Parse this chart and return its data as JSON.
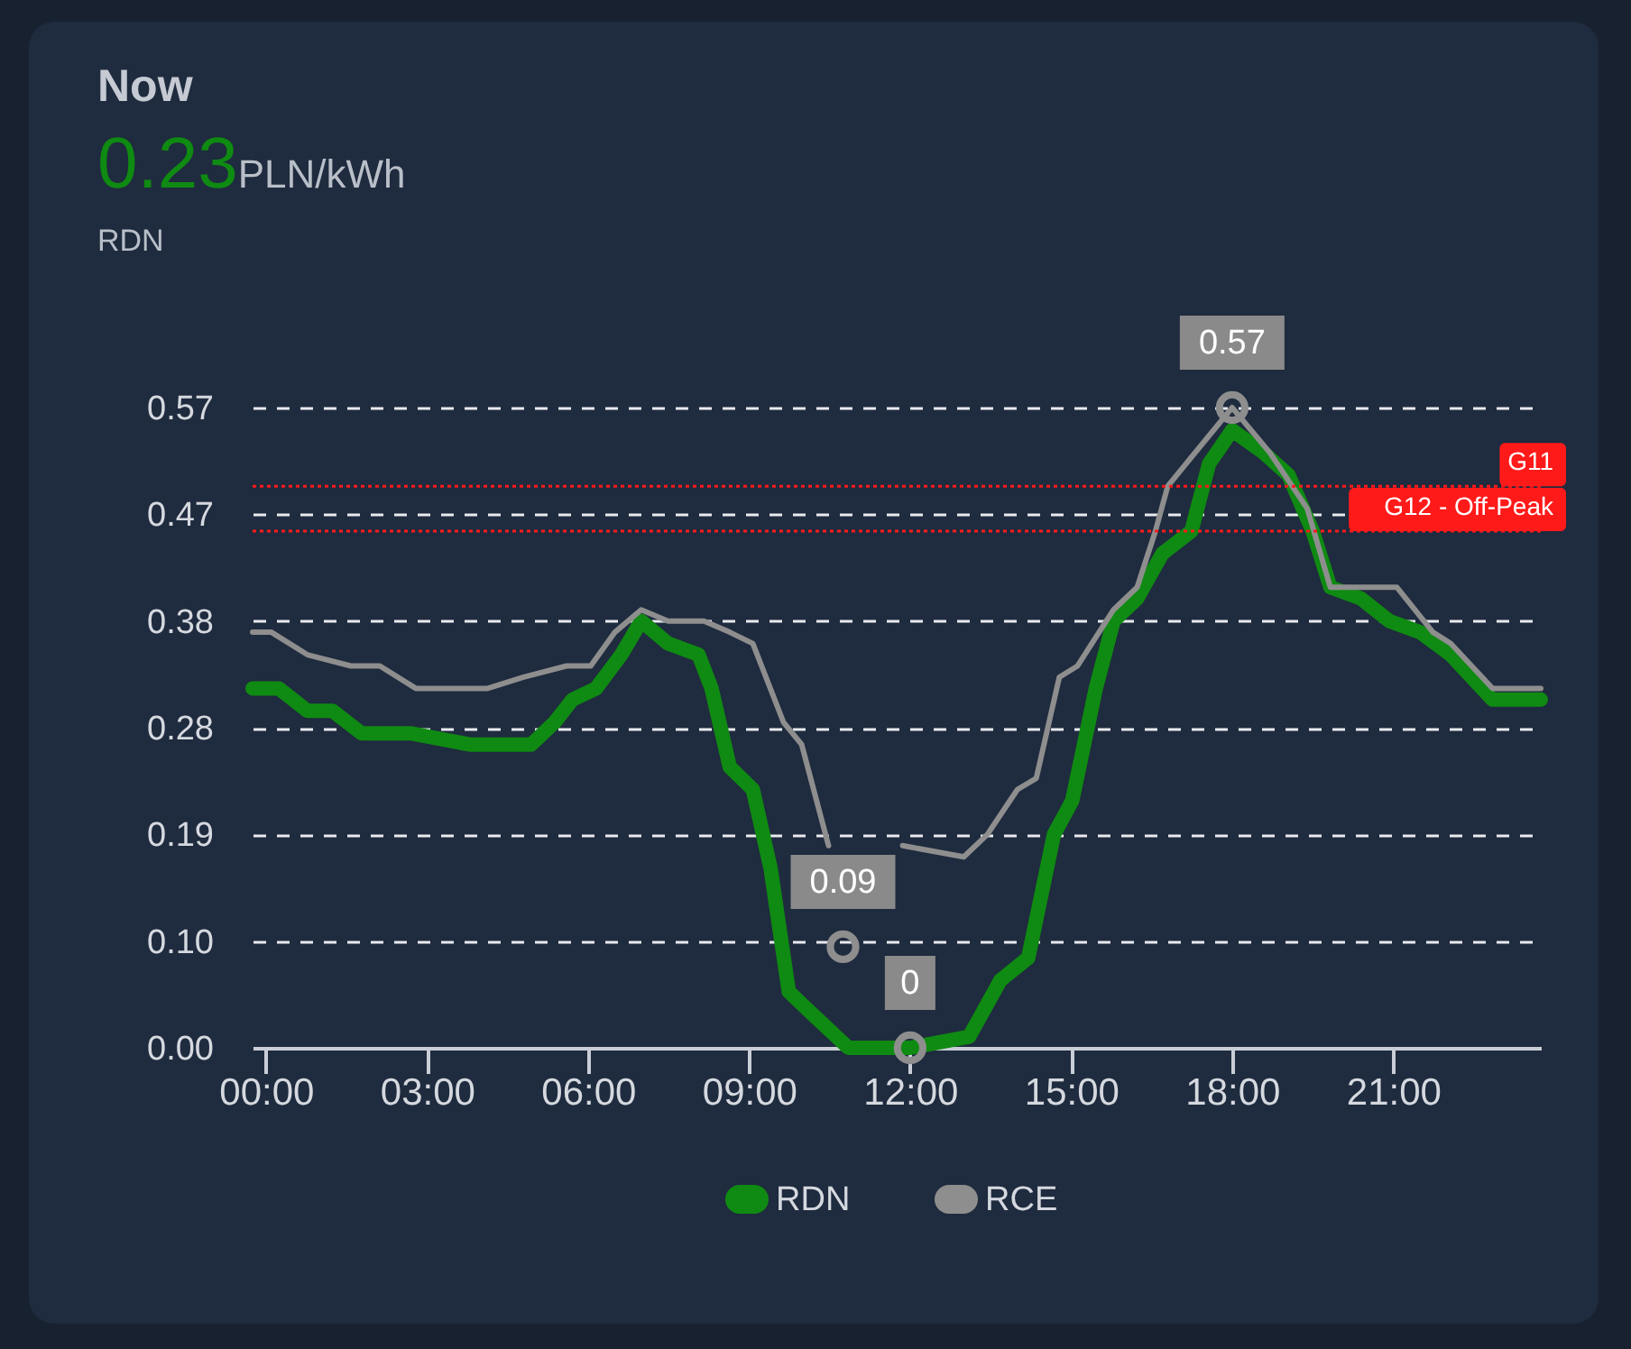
{
  "chart_data": {
    "type": "line",
    "title": "Now",
    "subtitle": "0.23PLN/kWh",
    "annotations": [
      "RDN",
      {
        "text": "0.57",
        "x": 18,
        "y": 0.57
      },
      {
        "text": "0.09",
        "x": 10.75,
        "y": 0.09
      },
      {
        "text": "0",
        "x": 12,
        "y": 0
      }
    ],
    "series": [
      {
        "name": "RDN",
        "color": "#0f8a12",
        "x": [
          -0.25,
          0.24,
          0.77,
          1.24,
          1.78,
          2.69,
          3.8,
          4.94,
          5.38,
          5.71,
          6.15,
          6.62,
          6.99,
          7.49,
          8.06,
          8.3,
          8.64,
          9.07,
          9.4,
          9.74,
          10.18,
          10.85,
          12,
          13.1,
          13.68,
          14.2,
          14.68,
          15.02,
          15.46,
          15.79,
          16.23,
          16.7,
          17.24,
          17.57,
          18,
          18.58,
          19.05,
          19.5,
          19.83,
          20.4,
          20.93,
          21.5,
          22.07,
          22.85,
          23.75
        ],
        "values": [
          0.32,
          0.32,
          0.3,
          0.3,
          0.28,
          0.28,
          0.27,
          0.27,
          0.29,
          0.31,
          0.32,
          0.35,
          0.38,
          0.36,
          0.35,
          0.32,
          0.25,
          0.23,
          0.16,
          0.05,
          0.03,
          0.0,
          0.0,
          0.01,
          0.06,
          0.08,
          0.19,
          0.22,
          0.32,
          0.38,
          0.4,
          0.44,
          0.46,
          0.52,
          0.55,
          0.53,
          0.51,
          0.46,
          0.41,
          0.4,
          0.38,
          0.37,
          0.35,
          0.31,
          0.31
        ]
      },
      {
        "name": "RCE",
        "color": "#8e8e8e",
        "x": [
          -0.25,
          0.1,
          0.77,
          1.58,
          2.12,
          2.79,
          4.13,
          4.8,
          5.6,
          6.05,
          6.5,
          6.99,
          7.49,
          8.16,
          8.64,
          9.07,
          9.64,
          9.98,
          10.48,
          10.75,
          11.86,
          13,
          13.44,
          14,
          14.35,
          14.78,
          15.12,
          15.79,
          16.23,
          16.57,
          16.8,
          17.14,
          18,
          18.7,
          19.4,
          19.83,
          21.07,
          21.74,
          22.07,
          22.85,
          23.75
        ],
        "values": [
          0.37,
          0.37,
          0.35,
          0.34,
          0.34,
          0.32,
          0.32,
          0.33,
          0.34,
          0.34,
          0.37,
          0.39,
          0.38,
          0.38,
          0.37,
          0.36,
          0.29,
          0.27,
          0.18,
          null,
          0.18,
          0.17,
          0.19,
          0.23,
          0.24,
          0.33,
          0.34,
          0.39,
          0.41,
          0.46,
          0.5,
          0.52,
          0.57,
          0.53,
          0.48,
          0.41,
          0.41,
          0.37,
          0.36,
          0.32,
          0.32
        ]
      }
    ],
    "xlim": [
      -0.25,
      23.75
    ],
    "xticks": [
      {
        "value": 0,
        "label": "00:00"
      },
      {
        "value": 3,
        "label": "03:00"
      },
      {
        "value": 6,
        "label": "06:00"
      },
      {
        "value": 9,
        "label": "09:00"
      },
      {
        "value": 12,
        "label": "12:00"
      },
      {
        "value": 15,
        "label": "15:00"
      },
      {
        "value": 18,
        "label": "18:00"
      },
      {
        "value": 21,
        "label": "21:00"
      }
    ],
    "ylim": [
      0,
      0.57
    ],
    "yticks": [
      {
        "value": 0,
        "label": "0.00"
      },
      {
        "value": 0.095,
        "label": "0.10"
      },
      0.19,
      {
        "value": 0.285,
        "label": "0.28"
      },
      0.38,
      {
        "value": 0.475,
        "label": "0.47"
      },
      0.57
    ],
    "ref_lines": [
      {
        "axis": "y",
        "value": 0.5,
        "label": "G11",
        "color": "#ff1a1a",
        "line_style": "dotted"
      },
      {
        "axis": "y",
        "value": 0.46,
        "label": "G12 - Off-Peak",
        "color": "#ff1a1a",
        "line_style": "dotted"
      }
    ],
    "grid": "y",
    "legend": "bottom",
    "marker": "none",
    "line_style": "solid"
  }
}
